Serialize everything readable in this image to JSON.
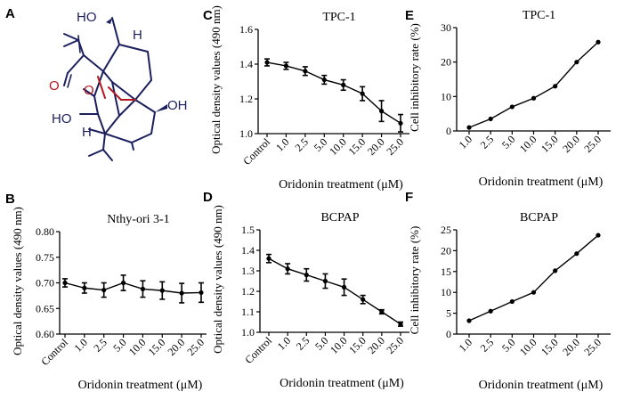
{
  "panels": {
    "A": "A",
    "B": "B",
    "C": "C",
    "D": "D",
    "E": "E",
    "F": "F"
  },
  "molecule": {
    "labels": [
      "HO",
      "H",
      "O",
      "O",
      "HO",
      "OH",
      "H"
    ]
  },
  "chart_data": [
    {
      "id": "B",
      "type": "line",
      "title": "Nthy-ori 3-1",
      "xlabel": "Oridonin treatment (μM)",
      "ylabel": "Optical density values (490 nm)",
      "categories": [
        "Control",
        "1.0",
        "2.5",
        "5.0",
        "10.0",
        "15.0",
        "20.0",
        "25.0"
      ],
      "values": [
        0.7,
        0.69,
        0.686,
        0.7,
        0.688,
        0.685,
        0.68,
        0.681
      ],
      "errors": [
        0.008,
        0.01,
        0.014,
        0.015,
        0.016,
        0.017,
        0.019,
        0.019
      ],
      "ylim": [
        0.6,
        0.8
      ],
      "yticks": [
        "0.60",
        "0.65",
        "0.70",
        "0.75",
        "0.80"
      ]
    },
    {
      "id": "C",
      "type": "line",
      "title": "TPC-1",
      "xlabel": "Oridonin treatment (μM)",
      "ylabel": "Optical density values (490 nm)",
      "categories": [
        "Control",
        "1.0",
        "2.5",
        "5.0",
        "10.0",
        "15.0",
        "20.0",
        "25.0"
      ],
      "values": [
        1.41,
        1.39,
        1.36,
        1.31,
        1.28,
        1.23,
        1.13,
        1.06
      ],
      "errors": [
        0.02,
        0.02,
        0.025,
        0.025,
        0.03,
        0.04,
        0.06,
        0.05
      ],
      "ylim": [
        1.0,
        1.6
      ],
      "yticks": [
        "1.0",
        "1.2",
        "1.4",
        "1.6"
      ]
    },
    {
      "id": "D",
      "type": "line",
      "title": "BCPAP",
      "xlabel": "Oridonin treatment (μM)",
      "ylabel": "Optical density values (490 nm)",
      "categories": [
        "Control",
        "1.0",
        "2.5",
        "5.0",
        "10.0",
        "15.0",
        "20.0",
        "25.0"
      ],
      "values": [
        1.36,
        1.31,
        1.28,
        1.25,
        1.22,
        1.16,
        1.1,
        1.04
      ],
      "errors": [
        0.02,
        0.025,
        0.03,
        0.035,
        0.04,
        0.02,
        0.01,
        0.01
      ],
      "ylim": [
        1.0,
        1.5
      ],
      "yticks": [
        "1.0",
        "1.1",
        "1.2",
        "1.3",
        "1.4",
        "1.5"
      ]
    },
    {
      "id": "E",
      "type": "line",
      "title": "TPC-1",
      "xlabel": "Oridonin treatment (μM)",
      "ylabel": "Cell inhibitory rate (%)",
      "categories": [
        "1.0",
        "2.5",
        "5.0",
        "10.0",
        "15.0",
        "20.0",
        "25.0"
      ],
      "values": [
        1.0,
        3.5,
        7.0,
        9.5,
        13.0,
        20.0,
        25.8
      ],
      "ylim": [
        0,
        30
      ],
      "yticks": [
        "0",
        "10",
        "20",
        "30"
      ]
    },
    {
      "id": "F",
      "type": "line",
      "title": "BCPAP",
      "xlabel": "Oridonin treatment (μM)",
      "ylabel": "Cell inhibitory rate (%)",
      "categories": [
        "1.0",
        "2.5",
        "5.0",
        "10.0",
        "15.0",
        "20.0",
        "25.0"
      ],
      "values": [
        3.2,
        5.5,
        7.8,
        10.0,
        15.2,
        19.3,
        23.7
      ],
      "ylim": [
        0,
        25
      ],
      "yticks": [
        "0",
        "5",
        "10",
        "15",
        "20",
        "25"
      ]
    }
  ]
}
